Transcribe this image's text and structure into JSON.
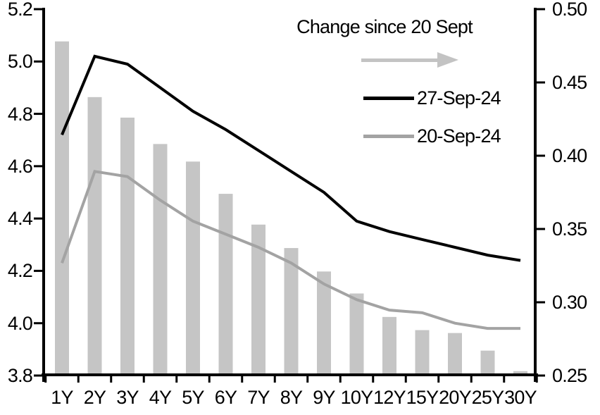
{
  "chart_data": {
    "type": "combo-bar-line-dual-axis",
    "title": "",
    "categories": [
      "1Y",
      "2Y",
      "3Y",
      "4Y",
      "5Y",
      "6Y",
      "7Y",
      "8Y",
      "9Y",
      "10Y",
      "12Y",
      "15Y",
      "20Y",
      "25Y",
      "30Y"
    ],
    "left_axis": {
      "min": 3.8,
      "max": 5.2,
      "tick_step": 0.2,
      "tick_labels": [
        "3.8",
        "4.0",
        "4.2",
        "4.4",
        "4.6",
        "4.8",
        "5.0",
        "5.2"
      ]
    },
    "right_axis": {
      "min": 0.25,
      "max": 0.5,
      "tick_step": 0.05,
      "tick_labels": [
        "0.25",
        "0.30",
        "0.35",
        "0.40",
        "0.45",
        "0.50"
      ]
    },
    "grid": false,
    "legend_position": "inside-top-right",
    "series": [
      {
        "name": "Change since 20 Sept",
        "type": "bar",
        "axis": "right",
        "color": "#c5c5c5",
        "values": [
          0.478,
          0.44,
          0.426,
          0.408,
          0.396,
          0.374,
          0.353,
          0.337,
          0.321,
          0.306,
          0.29,
          0.281,
          0.279,
          0.267,
          0.253
        ]
      },
      {
        "name": "27-Sep-24",
        "type": "line",
        "axis": "left",
        "color": "#000000",
        "values": [
          4.72,
          5.02,
          4.99,
          4.9,
          4.81,
          4.74,
          4.66,
          4.58,
          4.5,
          4.39,
          4.35,
          4.32,
          4.29,
          4.26,
          4.24
        ]
      },
      {
        "name": "20-Sep-24",
        "type": "line",
        "axis": "left",
        "color": "#a3a3a3",
        "values": [
          4.23,
          4.58,
          4.56,
          4.47,
          4.39,
          4.34,
          4.29,
          4.23,
          4.15,
          4.09,
          4.05,
          4.04,
          4.0,
          3.98,
          3.98
        ]
      }
    ]
  },
  "legend": {
    "title": "Change since 20 Sept",
    "arrow_color": "#c3c3c3",
    "entries": [
      {
        "label": "27-Sep-24",
        "color": "#000000"
      },
      {
        "label": "20-Sep-24",
        "color": "#a3a3a3"
      }
    ]
  }
}
